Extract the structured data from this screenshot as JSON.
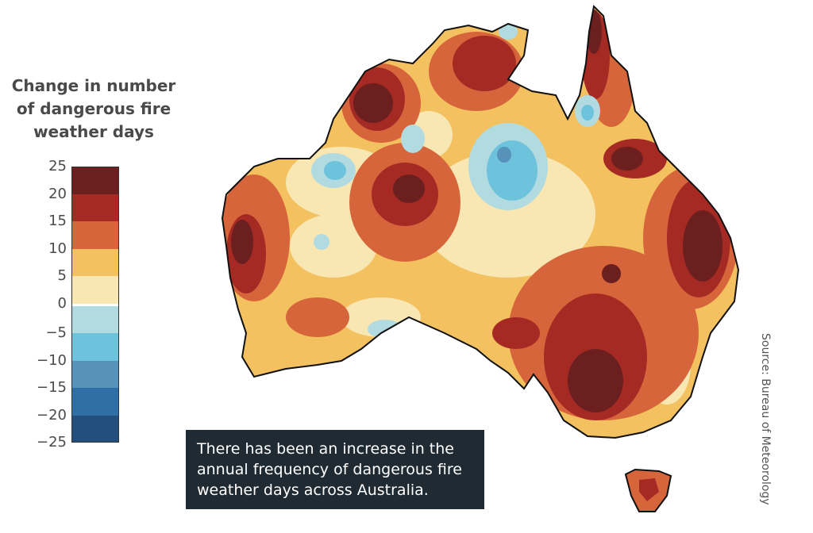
{
  "legend": {
    "title_lines": [
      "Change in number",
      "of dangerous fire",
      "weather days"
    ],
    "ticks": [
      "25",
      "20",
      "15",
      "10",
      "5",
      "0",
      "−5",
      "−10",
      "−15",
      "−20",
      "−25"
    ],
    "bands": [
      {
        "range": "20 to 25",
        "color": "#6b1f1f"
      },
      {
        "range": "15 to 20",
        "color": "#a52a24"
      },
      {
        "range": "10 to 15",
        "color": "#d7653b"
      },
      {
        "range": "5 to 10",
        "color": "#f3c15f"
      },
      {
        "range": "0 to 5",
        "color": "#f8e7b2"
      },
      {
        "range": "-5 to 0",
        "color": "#b1dbe0"
      },
      {
        "range": "-10 to -5",
        "color": "#6dc3db"
      },
      {
        "range": "-15 to -10",
        "color": "#5792bb"
      },
      {
        "range": "-20 to -15",
        "color": "#2f6fa6"
      },
      {
        "range": "-25 to -20",
        "color": "#234f7e"
      }
    ]
  },
  "map": {
    "region": "Australia",
    "outline_color": "#111111"
  },
  "caption": {
    "text": "There has been an increase in the annual frequency of dangerous fire weather days across Australia."
  },
  "source": {
    "text": "Source: Bureau of Meteorology"
  }
}
